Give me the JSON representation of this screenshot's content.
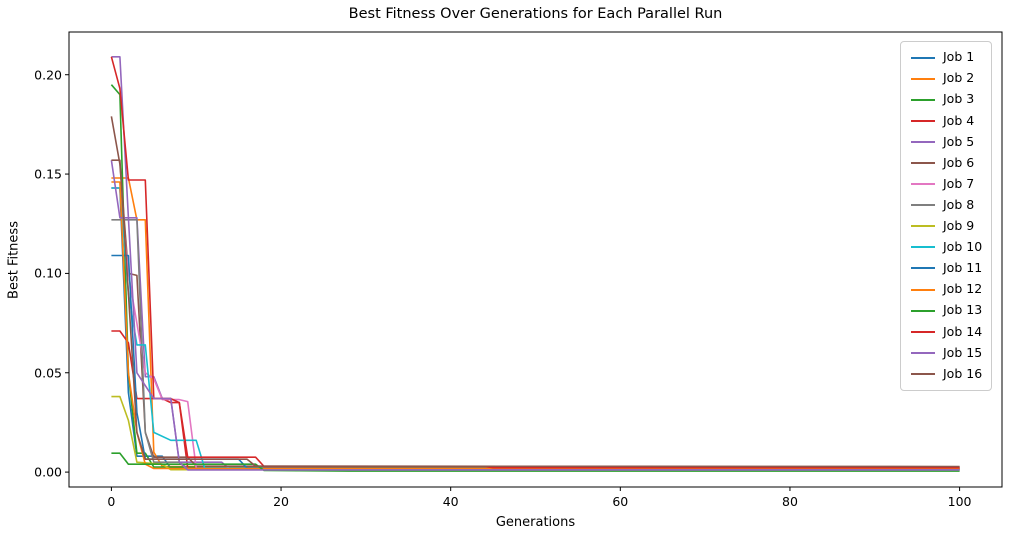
{
  "figure": {
    "background": "#ffffff",
    "spine_color": "#000000",
    "tick_color": "#000000"
  },
  "chart_data": {
    "type": "line",
    "title": "Best Fitness Over Generations for Each Parallel Run",
    "xlabel": "Generations",
    "ylabel": "Best Fitness",
    "grid": false,
    "legend_position": "upper right",
    "xlim": [
      -5,
      105
    ],
    "ylim": [
      -0.0075,
      0.2215
    ],
    "xticks": {
      "values": [
        0,
        20,
        40,
        60,
        80,
        100
      ],
      "labels": [
        "0",
        "20",
        "40",
        "60",
        "80",
        "100"
      ]
    },
    "yticks": {
      "values": [
        0.0,
        0.05,
        0.1,
        0.15,
        0.2
      ],
      "labels": [
        "0.00",
        "0.05",
        "0.10",
        "0.15",
        "0.20"
      ]
    },
    "series": [
      {
        "name": "Job 1",
        "color": "#1f77b4",
        "points": [
          [
            0,
            0.143
          ],
          [
            1,
            0.143
          ],
          [
            2,
            0.04
          ],
          [
            3,
            0.008
          ],
          [
            6,
            0.008
          ],
          [
            7,
            0.002
          ],
          [
            30,
            0.002
          ],
          [
            100,
            0.0019
          ]
        ]
      },
      {
        "name": "Job 2",
        "color": "#ff7f0e",
        "points": [
          [
            0,
            0.148
          ],
          [
            2,
            0.148
          ],
          [
            3,
            0.127
          ],
          [
            4,
            0.127
          ],
          [
            5,
            0.01
          ],
          [
            6,
            0.0028
          ],
          [
            45,
            0.0028
          ],
          [
            46,
            0.0024
          ],
          [
            100,
            0.0024
          ]
        ]
      },
      {
        "name": "Job 3",
        "color": "#2ca02c",
        "points": [
          [
            0,
            0.195
          ],
          [
            1,
            0.19
          ],
          [
            2,
            0.05
          ],
          [
            3,
            0.0095
          ],
          [
            4,
            0.0095
          ],
          [
            5,
            0.0025
          ],
          [
            59,
            0.0025
          ],
          [
            60,
            0.0012
          ],
          [
            100,
            0.0012
          ]
        ]
      },
      {
        "name": "Job 4",
        "color": "#d62728",
        "points": [
          [
            0,
            0.071
          ],
          [
            1,
            0.071
          ],
          [
            2,
            0.065
          ],
          [
            3,
            0.037
          ],
          [
            6,
            0.037
          ],
          [
            7,
            0.035
          ],
          [
            8,
            0.035
          ],
          [
            9,
            0.002
          ],
          [
            100,
            0.0017
          ]
        ]
      },
      {
        "name": "Job 5",
        "color": "#9467bd",
        "points": [
          [
            0,
            0.209
          ],
          [
            1,
            0.209
          ],
          [
            2,
            0.128
          ],
          [
            3,
            0.128
          ],
          [
            4,
            0.048
          ],
          [
            5,
            0.048
          ],
          [
            6,
            0.037
          ],
          [
            7,
            0.037
          ],
          [
            8,
            0.005
          ],
          [
            13,
            0.005
          ],
          [
            14,
            0.0015
          ],
          [
            100,
            0.0015
          ]
        ]
      },
      {
        "name": "Job 6",
        "color": "#8c564b",
        "points": [
          [
            0,
            0.179
          ],
          [
            1,
            0.155
          ],
          [
            2,
            0.1
          ],
          [
            3,
            0.099
          ],
          [
            4,
            0.02
          ],
          [
            5,
            0.0075
          ],
          [
            9,
            0.0075
          ],
          [
            10,
            0.003
          ],
          [
            100,
            0.0026
          ]
        ]
      },
      {
        "name": "Job 7",
        "color": "#e377c2",
        "points": [
          [
            0,
            0.143
          ],
          [
            1,
            0.143
          ],
          [
            2,
            0.1
          ],
          [
            4,
            0.05
          ],
          [
            5,
            0.047
          ],
          [
            6,
            0.0365
          ],
          [
            8,
            0.0365
          ],
          [
            9,
            0.0355
          ],
          [
            10,
            0.002
          ],
          [
            100,
            0.0016
          ]
        ]
      },
      {
        "name": "Job 8",
        "color": "#7f7f7f",
        "points": [
          [
            0,
            0.127
          ],
          [
            3,
            0.127
          ],
          [
            4,
            0.02
          ],
          [
            5,
            0.005
          ],
          [
            8,
            0.005
          ],
          [
            9,
            0.0018
          ],
          [
            100,
            0.0018
          ]
        ]
      },
      {
        "name": "Job 9",
        "color": "#bcbd22",
        "points": [
          [
            0,
            0.038
          ],
          [
            1,
            0.038
          ],
          [
            2,
            0.026
          ],
          [
            3,
            0.005
          ],
          [
            6,
            0.004
          ],
          [
            7,
            0.0012
          ],
          [
            100,
            0.0012
          ]
        ]
      },
      {
        "name": "Job 10",
        "color": "#17becf",
        "points": [
          [
            0,
            0.143
          ],
          [
            1,
            0.143
          ],
          [
            2,
            0.09
          ],
          [
            3,
            0.064
          ],
          [
            4,
            0.064
          ],
          [
            5,
            0.02
          ],
          [
            7,
            0.016
          ],
          [
            10,
            0.016
          ],
          [
            11,
            0.002
          ],
          [
            100,
            0.0014
          ]
        ]
      },
      {
        "name": "Job 11",
        "color": "#1f77b4",
        "points": [
          [
            0,
            0.109
          ],
          [
            2,
            0.109
          ],
          [
            3,
            0.03
          ],
          [
            4,
            0.0065
          ],
          [
            15,
            0.0065
          ],
          [
            16,
            0.002
          ],
          [
            100,
            0.0013
          ]
        ]
      },
      {
        "name": "Job 12",
        "color": "#ff7f0e",
        "points": [
          [
            0,
            0.146
          ],
          [
            1,
            0.146
          ],
          [
            2,
            0.05
          ],
          [
            3,
            0.02
          ],
          [
            4,
            0.004
          ],
          [
            5,
            0.0018
          ],
          [
            100,
            0.0018
          ]
        ]
      },
      {
        "name": "Job 13",
        "color": "#2ca02c",
        "points": [
          [
            0,
            0.0095
          ],
          [
            1,
            0.0095
          ],
          [
            2,
            0.004
          ],
          [
            17,
            0.004
          ],
          [
            18,
            0.0008
          ],
          [
            28,
            0.0005
          ],
          [
            100,
            0.0005
          ]
        ]
      },
      {
        "name": "Job 14",
        "color": "#d62728",
        "points": [
          [
            0,
            0.209
          ],
          [
            1,
            0.193
          ],
          [
            2,
            0.147
          ],
          [
            4,
            0.147
          ],
          [
            5,
            0.037
          ],
          [
            7,
            0.037
          ],
          [
            8,
            0.035
          ],
          [
            9,
            0.0075
          ],
          [
            17,
            0.0075
          ],
          [
            18,
            0.0028
          ],
          [
            44,
            0.0028
          ],
          [
            45,
            0.0022
          ],
          [
            100,
            0.0022
          ]
        ]
      },
      {
        "name": "Job 15",
        "color": "#9467bd",
        "points": [
          [
            0,
            0.157
          ],
          [
            1,
            0.128
          ],
          [
            2,
            0.128
          ],
          [
            3,
            0.05
          ],
          [
            5,
            0.037
          ],
          [
            7,
            0.037
          ],
          [
            8,
            0.005
          ],
          [
            9,
            0.0011
          ],
          [
            100,
            0.0011
          ]
        ]
      },
      {
        "name": "Job 16",
        "color": "#8c564b",
        "points": [
          [
            0,
            0.157
          ],
          [
            1,
            0.157
          ],
          [
            2,
            0.09
          ],
          [
            3,
            0.02
          ],
          [
            4,
            0.0065
          ],
          [
            16,
            0.0065
          ],
          [
            17,
            0.003
          ],
          [
            100,
            0.0028
          ]
        ]
      }
    ]
  }
}
